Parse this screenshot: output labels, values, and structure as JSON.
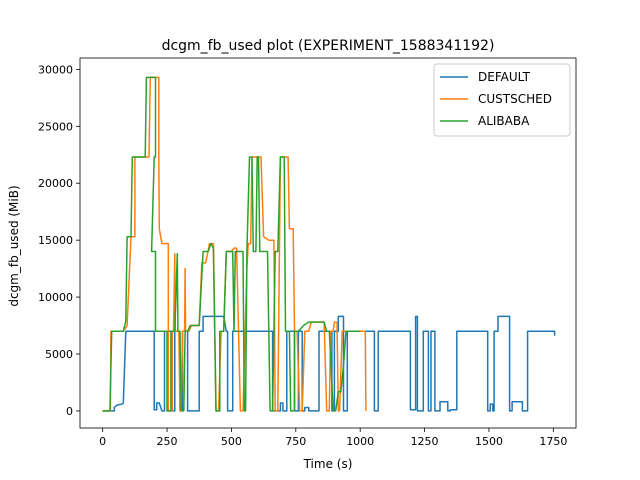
{
  "chart_data": {
    "type": "line",
    "title": "dcgm_fb_used plot (EXPERIMENT_1588341192)",
    "xlabel": "Time (s)",
    "ylabel": "dcgm_fb_used (MiB)",
    "xlim": [
      -88,
      1838
    ],
    "ylim": [
      -1500,
      31000
    ],
    "xticks": [
      0,
      250,
      500,
      750,
      1000,
      1250,
      1500,
      1750
    ],
    "yticks": [
      0,
      5000,
      10000,
      15000,
      20000,
      25000,
      30000
    ],
    "grid": false,
    "legend": "top-right",
    "series": [
      {
        "name": "DEFAULT",
        "color": "#1f77b4",
        "points": [
          [
            0,
            0
          ],
          [
            45,
            0
          ],
          [
            45,
            300
          ],
          [
            55,
            500
          ],
          [
            75,
            600
          ],
          [
            80,
            700
          ],
          [
            90,
            7000
          ],
          [
            200,
            7000
          ],
          [
            200,
            100
          ],
          [
            210,
            100
          ],
          [
            210,
            700
          ],
          [
            220,
            700
          ],
          [
            230,
            0
          ],
          [
            240,
            0
          ],
          [
            240,
            7000
          ],
          [
            270,
            7000
          ],
          [
            270,
            0
          ],
          [
            280,
            0
          ],
          [
            280,
            7000
          ],
          [
            300,
            7000
          ],
          [
            300,
            100
          ],
          [
            310,
            100
          ],
          [
            310,
            7000
          ],
          [
            330,
            7000
          ],
          [
            330,
            0
          ],
          [
            375,
            0
          ],
          [
            375,
            7000
          ],
          [
            390,
            7000
          ],
          [
            390,
            8300
          ],
          [
            470,
            8300
          ],
          [
            480,
            7000
          ],
          [
            485,
            7000
          ],
          [
            485,
            0
          ],
          [
            505,
            0
          ],
          [
            505,
            7000
          ],
          [
            660,
            7000
          ],
          [
            660,
            0
          ],
          [
            690,
            0
          ],
          [
            690,
            700
          ],
          [
            700,
            700
          ],
          [
            700,
            0
          ],
          [
            715,
            0
          ],
          [
            715,
            7000
          ],
          [
            745,
            7000
          ],
          [
            745,
            0
          ],
          [
            760,
            0
          ],
          [
            760,
            7000
          ],
          [
            775,
            7000
          ],
          [
            775,
            0
          ],
          [
            785,
            0
          ],
          [
            785,
            300
          ],
          [
            800,
            300
          ],
          [
            800,
            0
          ],
          [
            840,
            0
          ],
          [
            840,
            7000
          ],
          [
            890,
            7000
          ],
          [
            890,
            0
          ],
          [
            900,
            0
          ],
          [
            900,
            7000
          ],
          [
            915,
            7000
          ],
          [
            915,
            8300
          ],
          [
            935,
            8300
          ],
          [
            935,
            0
          ],
          [
            950,
            0
          ],
          [
            950,
            7000
          ],
          [
            1055,
            7000
          ],
          [
            1055,
            0
          ],
          [
            1070,
            0
          ],
          [
            1070,
            7000
          ],
          [
            1130,
            7000
          ],
          [
            1130,
            7000
          ],
          [
            1195,
            7000
          ],
          [
            1195,
            100
          ],
          [
            1215,
            100
          ],
          [
            1215,
            8300
          ],
          [
            1222,
            8300
          ],
          [
            1222,
            0
          ],
          [
            1245,
            0
          ],
          [
            1245,
            7000
          ],
          [
            1265,
            7000
          ],
          [
            1265,
            0
          ],
          [
            1275,
            0
          ],
          [
            1275,
            7000
          ],
          [
            1290,
            7000
          ],
          [
            1290,
            0
          ],
          [
            1310,
            0
          ],
          [
            1310,
            800
          ],
          [
            1340,
            800
          ],
          [
            1340,
            0
          ],
          [
            1350,
            0
          ],
          [
            1350,
            100
          ],
          [
            1375,
            100
          ],
          [
            1375,
            7000
          ],
          [
            1495,
            7000
          ],
          [
            1495,
            0
          ],
          [
            1505,
            0
          ],
          [
            1505,
            600
          ],
          [
            1515,
            600
          ],
          [
            1515,
            0
          ],
          [
            1520,
            0
          ],
          [
            1520,
            7000
          ],
          [
            1535,
            7000
          ],
          [
            1535,
            8300
          ],
          [
            1580,
            8300
          ],
          [
            1580,
            0
          ],
          [
            1590,
            0
          ],
          [
            1590,
            800
          ],
          [
            1630,
            800
          ],
          [
            1630,
            0
          ],
          [
            1650,
            0
          ],
          [
            1650,
            7000
          ],
          [
            1755,
            7000
          ],
          [
            1755,
            6600
          ]
        ]
      },
      {
        "name": "CUSTSCHED",
        "color": "#ff7f0e",
        "points": [
          [
            0,
            0
          ],
          [
            30,
            0
          ],
          [
            32,
            7000
          ],
          [
            80,
            7000
          ],
          [
            95,
            7500
          ],
          [
            110,
            15300
          ],
          [
            125,
            15300
          ],
          [
            125,
            22300
          ],
          [
            180,
            22300
          ],
          [
            185,
            29300
          ],
          [
            218,
            29300
          ],
          [
            218,
            22300
          ],
          [
            220,
            16000
          ],
          [
            230,
            14700
          ],
          [
            255,
            14700
          ],
          [
            255,
            0
          ],
          [
            270,
            0
          ],
          [
            270,
            7000
          ],
          [
            275,
            7000
          ],
          [
            280,
            13800
          ],
          [
            282,
            7000
          ],
          [
            296,
            7000
          ],
          [
            300,
            0
          ],
          [
            305,
            0
          ],
          [
            310,
            7000
          ],
          [
            318,
            7000
          ],
          [
            320,
            12500
          ],
          [
            322,
            7000
          ],
          [
            335,
            7000
          ],
          [
            345,
            7500
          ],
          [
            375,
            7500
          ],
          [
            385,
            13000
          ],
          [
            400,
            13000
          ],
          [
            415,
            14700
          ],
          [
            430,
            14700
          ],
          [
            440,
            0
          ],
          [
            450,
            0
          ],
          [
            460,
            7000
          ],
          [
            470,
            7000
          ],
          [
            480,
            14000
          ],
          [
            500,
            14000
          ],
          [
            510,
            14300
          ],
          [
            520,
            14300
          ],
          [
            535,
            0
          ],
          [
            545,
            0
          ],
          [
            560,
            12500
          ],
          [
            565,
            14700
          ],
          [
            575,
            14700
          ],
          [
            580,
            22300
          ],
          [
            615,
            22300
          ],
          [
            625,
            15300
          ],
          [
            645,
            15000
          ],
          [
            665,
            15000
          ],
          [
            670,
            0
          ],
          [
            680,
            0
          ],
          [
            690,
            22300
          ],
          [
            720,
            22300
          ],
          [
            725,
            16000
          ],
          [
            740,
            16000
          ],
          [
            745,
            7000
          ],
          [
            755,
            7000
          ],
          [
            765,
            0
          ],
          [
            775,
            0
          ],
          [
            785,
            7000
          ],
          [
            800,
            7000
          ],
          [
            810,
            7800
          ],
          [
            860,
            7800
          ],
          [
            870,
            0
          ],
          [
            880,
            0
          ],
          [
            885,
            7000
          ],
          [
            895,
            7000
          ],
          [
            900,
            7800
          ],
          [
            910,
            7800
          ],
          [
            915,
            0
          ],
          [
            920,
            0
          ],
          [
            930,
            7000
          ],
          [
            1020,
            7000
          ],
          [
            1022,
            0
          ]
        ]
      },
      {
        "name": "ALIBABA",
        "color": "#2ca02c",
        "points": [
          [
            0,
            0
          ],
          [
            28,
            0
          ],
          [
            35,
            7000
          ],
          [
            80,
            7000
          ],
          [
            90,
            7900
          ],
          [
            95,
            15300
          ],
          [
            110,
            15300
          ],
          [
            115,
            22300
          ],
          [
            165,
            22300
          ],
          [
            170,
            29300
          ],
          [
            205,
            29300
          ],
          [
            205,
            22300
          ],
          [
            200,
            22300
          ],
          [
            190,
            14000
          ],
          [
            205,
            14000
          ],
          [
            205,
            7000
          ],
          [
            250,
            7000
          ],
          [
            250,
            0
          ],
          [
            265,
            0
          ],
          [
            265,
            7000
          ],
          [
            280,
            7000
          ],
          [
            290,
            13800
          ],
          [
            292,
            7000
          ],
          [
            300,
            7000
          ],
          [
            305,
            0
          ],
          [
            315,
            0
          ],
          [
            320,
            7000
          ],
          [
            330,
            7000
          ],
          [
            340,
            7500
          ],
          [
            375,
            7500
          ],
          [
            390,
            14000
          ],
          [
            410,
            14000
          ],
          [
            420,
            14700
          ],
          [
            430,
            14300
          ],
          [
            440,
            0
          ],
          [
            455,
            0
          ],
          [
            455,
            7000
          ],
          [
            470,
            7000
          ],
          [
            480,
            14000
          ],
          [
            505,
            14000
          ],
          [
            510,
            7000
          ],
          [
            515,
            14000
          ],
          [
            545,
            14000
          ],
          [
            550,
            0
          ],
          [
            555,
            0
          ],
          [
            560,
            14000
          ],
          [
            570,
            22300
          ],
          [
            580,
            22300
          ],
          [
            585,
            14000
          ],
          [
            595,
            14000
          ],
          [
            600,
            22300
          ],
          [
            605,
            22300
          ],
          [
            610,
            14000
          ],
          [
            640,
            14000
          ],
          [
            650,
            0
          ],
          [
            660,
            0
          ],
          [
            670,
            14000
          ],
          [
            680,
            14000
          ],
          [
            690,
            22300
          ],
          [
            705,
            22300
          ],
          [
            710,
            7000
          ],
          [
            725,
            7000
          ],
          [
            730,
            0
          ],
          [
            745,
            0
          ],
          [
            745,
            7000
          ],
          [
            760,
            7000
          ],
          [
            780,
            7500
          ],
          [
            800,
            7800
          ],
          [
            860,
            7800
          ],
          [
            870,
            7000
          ],
          [
            880,
            7000
          ],
          [
            895,
            0
          ],
          [
            905,
            0
          ],
          [
            915,
            1700
          ],
          [
            925,
            1700
          ],
          [
            935,
            4000
          ],
          [
            945,
            7000
          ],
          [
            1000,
            7000
          ]
        ]
      }
    ]
  }
}
